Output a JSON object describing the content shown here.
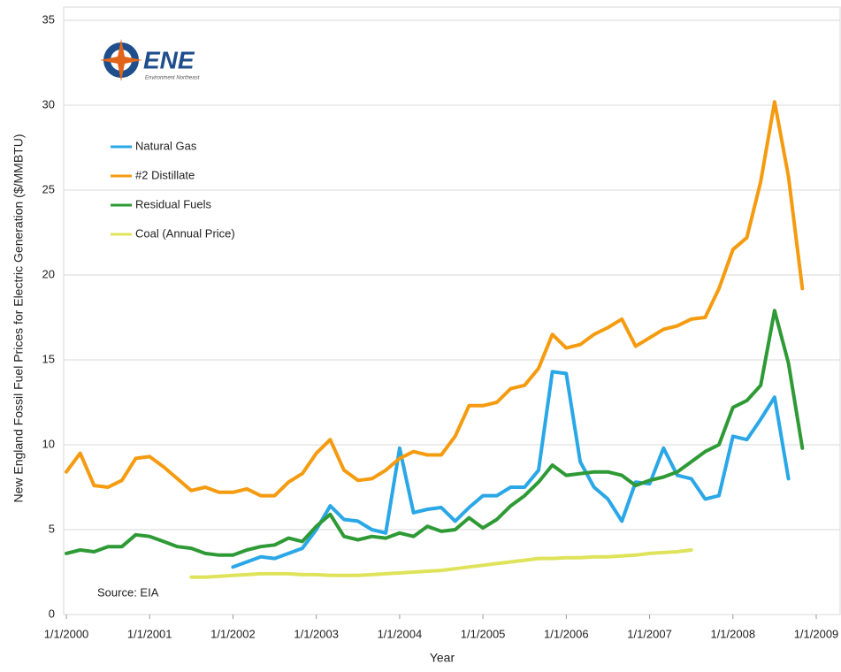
{
  "chart_data": {
    "type": "line",
    "y_label": "New England Fossil Fuel Prices for Electric Generation ($/MMBTU)",
    "x_label": "Year",
    "logo": {
      "text": "ENE",
      "subtitle": "Environment Northeast"
    },
    "annotation": "Source: EIA",
    "legend": "upper left",
    "grid": true,
    "xlim": [
      2000,
      2009
    ],
    "xticks": [
      {
        "value": 2000,
        "label": "1/1/2000"
      },
      {
        "value": 2001,
        "label": "1/1/2001"
      },
      {
        "value": 2002,
        "label": "1/1/2002"
      },
      {
        "value": 2003,
        "label": "1/1/2003"
      },
      {
        "value": 2004,
        "label": "1/1/2004"
      },
      {
        "value": 2005,
        "label": "1/1/2005"
      },
      {
        "value": 2006,
        "label": "1/1/2006"
      },
      {
        "value": 2007,
        "label": "1/1/2007"
      },
      {
        "value": 2008,
        "label": "1/1/2008"
      },
      {
        "value": 2009,
        "label": "1/1/2009"
      }
    ],
    "ylim": [
      0,
      35
    ],
    "yticks": [
      0,
      5,
      10,
      15,
      20,
      25,
      30,
      35
    ],
    "x": [
      2000,
      2000.167,
      2000.333,
      2000.5,
      2000.667,
      2000.833,
      2001,
      2001.167,
      2001.333,
      2001.5,
      2001.667,
      2001.833,
      2002,
      2002.167,
      2002.333,
      2002.5,
      2002.667,
      2002.833,
      2003,
      2003.167,
      2003.333,
      2003.5,
      2003.667,
      2003.833,
      2004,
      2004.167,
      2004.333,
      2004.5,
      2004.667,
      2004.833,
      2005,
      2005.167,
      2005.333,
      2005.5,
      2005.667,
      2005.833,
      2006,
      2006.167,
      2006.333,
      2006.5,
      2006.667,
      2006.833,
      2007,
      2007.167,
      2007.333,
      2007.5,
      2007.667,
      2007.833,
      2008,
      2008.167,
      2008.333,
      2008.5,
      2008.667,
      2008.833
    ],
    "series": [
      {
        "name": "Natural Gas",
        "color": "#2aa7e6",
        "values": [
          null,
          null,
          null,
          null,
          null,
          null,
          null,
          null,
          null,
          null,
          null,
          null,
          2.8,
          3.1,
          3.4,
          3.3,
          3.6,
          3.9,
          5.0,
          6.4,
          5.6,
          5.5,
          5.0,
          4.8,
          9.8,
          6.0,
          6.2,
          6.3,
          5.5,
          6.3,
          7.0,
          7.0,
          7.5,
          7.5,
          8.5,
          14.3,
          14.2,
          9.0,
          7.5,
          6.8,
          5.5,
          7.8,
          7.7,
          9.8,
          8.2,
          8.0,
          6.8,
          7.0,
          10.5,
          10.3,
          11.5,
          12.8,
          8.0,
          null
        ]
      },
      {
        "name": "#2 Distillate",
        "color": "#f59b10",
        "values": [
          8.4,
          9.5,
          7.6,
          7.5,
          7.9,
          9.2,
          9.3,
          8.7,
          8.0,
          7.3,
          7.5,
          7.2,
          7.2,
          7.4,
          7.0,
          7.0,
          7.8,
          8.3,
          9.5,
          10.3,
          8.5,
          7.9,
          8.0,
          8.5,
          9.2,
          9.6,
          9.4,
          9.4,
          10.5,
          12.3,
          12.3,
          12.5,
          13.3,
          13.5,
          14.5,
          16.5,
          15.7,
          15.9,
          16.5,
          16.9,
          17.4,
          15.8,
          16.3,
          16.8,
          17.0,
          17.4,
          17.5,
          19.2,
          21.5,
          22.2,
          25.5,
          30.2,
          25.8,
          19.2
        ]
      },
      {
        "name": "Residual Fuels",
        "color": "#2e9a35",
        "values": [
          3.6,
          3.8,
          3.7,
          4.0,
          4.0,
          4.7,
          4.6,
          4.3,
          4.0,
          3.9,
          3.6,
          3.5,
          3.5,
          3.8,
          4.0,
          4.1,
          4.5,
          4.3,
          5.2,
          5.9,
          4.6,
          4.4,
          4.6,
          4.5,
          4.8,
          4.6,
          5.2,
          4.9,
          5.0,
          5.7,
          5.1,
          5.6,
          6.4,
          7.0,
          7.8,
          8.8,
          8.2,
          8.3,
          8.4,
          8.4,
          8.2,
          7.6,
          7.9,
          8.1,
          8.4,
          9.0,
          9.6,
          10.0,
          12.2,
          12.6,
          13.5,
          17.9,
          14.8,
          9.8
        ]
      },
      {
        "name": "Coal (Annual Price)",
        "color": "#dfe35a",
        "values": [
          null,
          null,
          null,
          null,
          null,
          null,
          null,
          null,
          null,
          2.2,
          2.2,
          2.25,
          2.3,
          2.35,
          2.4,
          2.4,
          2.4,
          2.35,
          2.35,
          2.3,
          2.3,
          2.3,
          2.35,
          2.4,
          2.45,
          2.5,
          2.55,
          2.6,
          2.7,
          2.8,
          2.9,
          3.0,
          3.1,
          3.2,
          3.3,
          3.3,
          3.35,
          3.35,
          3.4,
          3.4,
          3.45,
          3.5,
          3.6,
          3.65,
          3.7,
          3.8,
          null,
          null,
          null,
          null,
          null,
          null,
          null,
          null
        ]
      }
    ]
  }
}
